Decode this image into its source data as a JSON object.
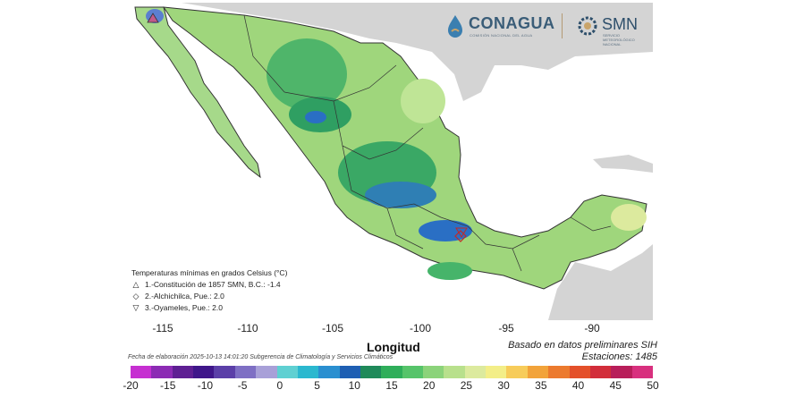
{
  "map": {
    "title": "Temperaturas mínimas en grados Celsius (°C)",
    "x_axis_label": "Longitud",
    "x_ticks": [
      "-115",
      "-110",
      "-105",
      "-100",
      "-95",
      "-90"
    ],
    "stations": [
      {
        "symbol": "△",
        "text": "1.-Constitución de 1857 SMN, B.C.: -1.4",
        "value": -1.4
      },
      {
        "symbol": "◇",
        "text": "2.-Alchichilca, Pue.: 2.0",
        "value": 2.0
      },
      {
        "symbol": "▽",
        "text": "3.-Oyameles, Pue.: 2.0",
        "value": 2.0
      }
    ],
    "note_source": "Basado en datos preliminares SIH",
    "note_stations": "Estaciones:  1485",
    "station_count": 1485,
    "date_line": "Fecha de elaboración 2025-10-13 14:01:20 Subgerencia de Climatología y Servicios Climáticos"
  },
  "logos": {
    "conagua": "CONAGUA",
    "conagua_sub": "COMISIÓN NACIONAL DEL AGUA",
    "smn": "SMN",
    "smn_sub": "SERVICIO METEOROLÓGICO NACIONAL"
  },
  "colorbar": {
    "ticks": [
      "-20",
      "-15",
      "-10",
      "-5",
      "0",
      "5",
      "10",
      "15",
      "20",
      "25",
      "30",
      "35",
      "40",
      "45",
      "50"
    ],
    "colors": [
      "#c62fd1",
      "#8c2bb4",
      "#5e1f93",
      "#3f168a",
      "#5b3fa8",
      "#7e6fc4",
      "#a8a0d8",
      "#5fd0d2",
      "#2bb8cf",
      "#2a8fd0",
      "#1e5fb3",
      "#1f8a5a",
      "#2fae5a",
      "#56c46a",
      "#8bd37a",
      "#b8e08c",
      "#dcea9e",
      "#f3ee88",
      "#f7cc5a",
      "#f2a33a",
      "#ec7a2e",
      "#e4502a",
      "#d22d3a",
      "#b81e5a",
      "#d8307e"
    ],
    "unit": "°C",
    "min": -20,
    "max": 50
  }
}
